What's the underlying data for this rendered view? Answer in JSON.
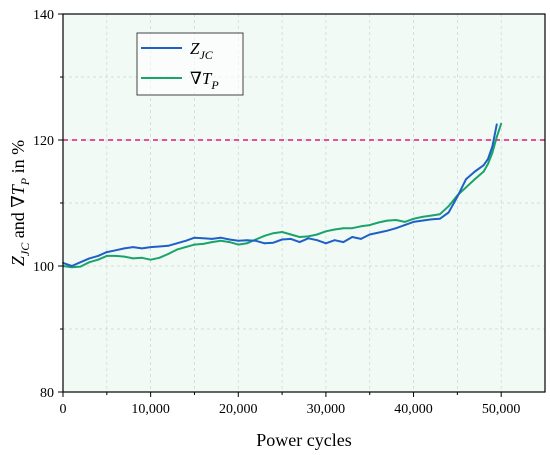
{
  "chart_data": {
    "type": "line",
    "xlabel": "Power cycles",
    "ylabel_parts": {
      "z": "Z",
      "z_sub": "JC",
      "and": " and ∇",
      "t": "T",
      "t_sub": "P",
      "tail": " in %"
    },
    "xlim": [
      0,
      55000
    ],
    "ylim": [
      80,
      140
    ],
    "xticks": [
      0,
      10000,
      20000,
      30000,
      40000,
      50000
    ],
    "xtick_labels": [
      "0",
      "10,000",
      "20,000",
      "30,000",
      "40,000",
      "50,000"
    ],
    "yticks": [
      80,
      100,
      120,
      140
    ],
    "ytick_labels": [
      "80",
      "100",
      "120",
      "140"
    ],
    "grid": true,
    "plot_background": "#f2faf6",
    "threshold": {
      "y": 120,
      "color": "#e5177b",
      "style": "dashed"
    },
    "legend": {
      "placement": "top-left"
    },
    "series": [
      {
        "name": "Z_JC",
        "label_main": "Z",
        "label_sub": "JC",
        "color": "#1f5fc8",
        "x": [
          0,
          1000,
          2000,
          3000,
          4000,
          5000,
          6000,
          7000,
          8000,
          9000,
          10000,
          11000,
          12000,
          13000,
          14000,
          15000,
          16000,
          17000,
          18000,
          19000,
          20000,
          21000,
          22000,
          23000,
          24000,
          25000,
          26000,
          27000,
          28000,
          29000,
          30000,
          31000,
          32000,
          33000,
          34000,
          35000,
          36000,
          37000,
          38000,
          39000,
          40000,
          41000,
          42000,
          43000,
          44000,
          45000,
          46000,
          47000,
          48000,
          48500,
          49000,
          49500
        ],
        "y": [
          100.5,
          100.0,
          100.6,
          101.2,
          101.6,
          102.2,
          102.5,
          102.8,
          103.0,
          102.8,
          103.0,
          103.1,
          103.2,
          103.6,
          104.0,
          104.5,
          104.4,
          104.3,
          104.5,
          104.2,
          104.0,
          104.1,
          104.0,
          103.6,
          103.7,
          104.2,
          104.3,
          103.8,
          104.4,
          104.1,
          103.6,
          104.1,
          103.8,
          104.6,
          104.3,
          105.0,
          105.3,
          105.6,
          106.0,
          106.5,
          107.0,
          107.2,
          107.4,
          107.5,
          108.5,
          111.0,
          113.8,
          115.0,
          116.0,
          117.0,
          119.0,
          122.5
        ]
      },
      {
        "name": "∇T_P",
        "label_main": "∇T",
        "label_sub": "P",
        "color": "#1aa36a",
        "x": [
          0,
          1000,
          2000,
          3000,
          4000,
          5000,
          6000,
          7000,
          8000,
          9000,
          10000,
          11000,
          12000,
          13000,
          14000,
          15000,
          16000,
          17000,
          18000,
          19000,
          20000,
          21000,
          22000,
          23000,
          24000,
          25000,
          26000,
          27000,
          28000,
          29000,
          30000,
          31000,
          32000,
          33000,
          34000,
          35000,
          36000,
          37000,
          38000,
          39000,
          40000,
          41000,
          42000,
          43000,
          44000,
          45000,
          46000,
          47000,
          48000,
          48500,
          49000,
          49500,
          50000
        ],
        "y": [
          100.0,
          99.8,
          99.9,
          100.6,
          101.0,
          101.6,
          101.6,
          101.5,
          101.2,
          101.3,
          101.0,
          101.3,
          101.9,
          102.6,
          103.0,
          103.4,
          103.5,
          103.8,
          104.0,
          103.8,
          103.4,
          103.6,
          104.2,
          104.8,
          105.2,
          105.4,
          105.0,
          104.6,
          104.7,
          105.0,
          105.5,
          105.8,
          106.0,
          106.0,
          106.3,
          106.5,
          106.9,
          107.2,
          107.3,
          107.0,
          107.5,
          107.8,
          108.0,
          108.2,
          109.5,
          111.2,
          112.5,
          113.8,
          115.0,
          116.2,
          118.0,
          120.5,
          122.6
        ]
      }
    ]
  }
}
